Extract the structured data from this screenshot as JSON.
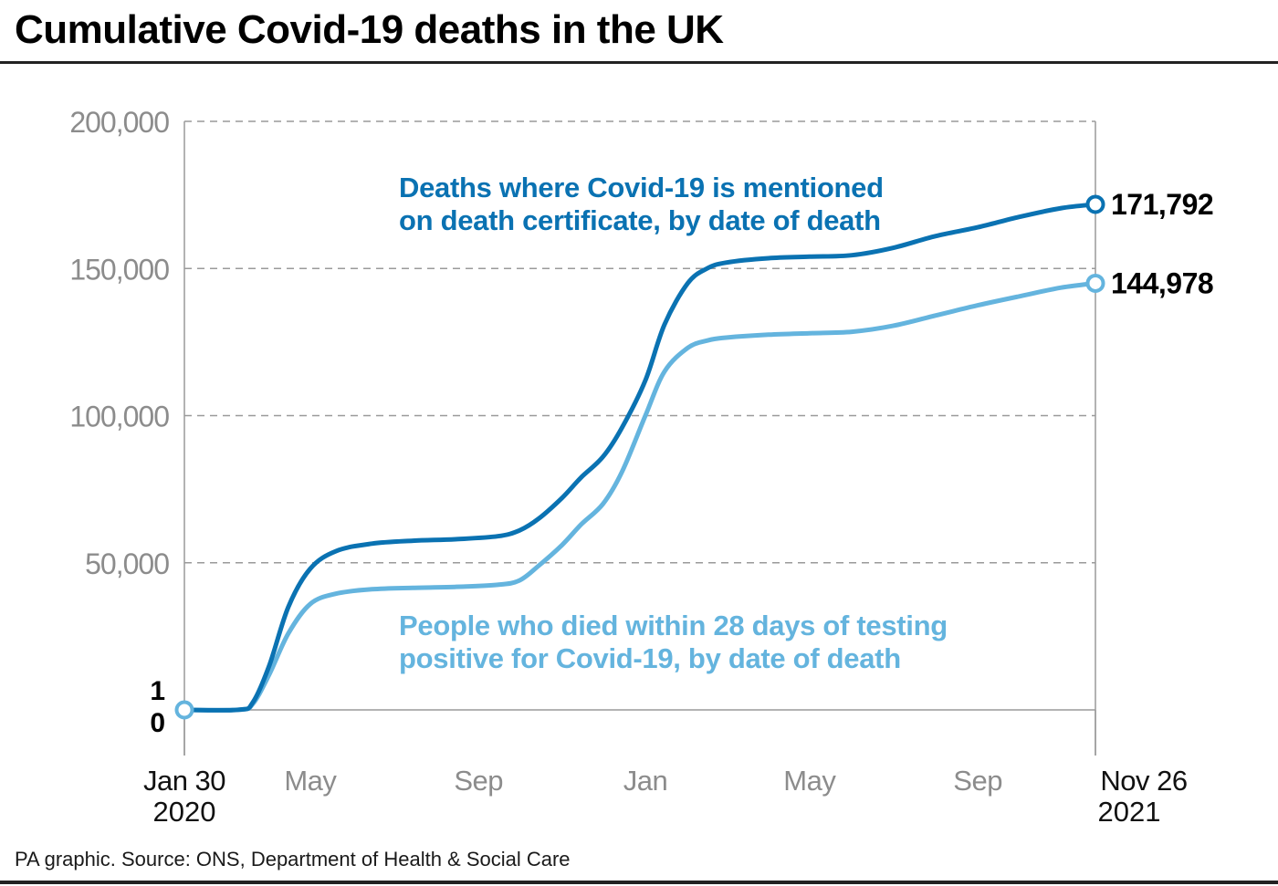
{
  "title": "Cumulative Covid-19 deaths in the UK",
  "source": "PA graphic. Source: ONS, Department of Health & Social Care",
  "colors": {
    "series_dark": "#0a72b2",
    "series_light": "#64b4de",
    "grid": "#9a9a9a",
    "axis_text": "#8c8c8c",
    "text": "#000000"
  },
  "chart_data": {
    "type": "line",
    "title": "Cumulative Covid-19 deaths in the UK",
    "x_start": "2020-01-30",
    "x_end": "2021-11-26",
    "ylim": [
      0,
      200000
    ],
    "yticks": [
      {
        "value": 0,
        "label": "0"
      },
      {
        "value": 50000,
        "label": "50,000"
      },
      {
        "value": 100000,
        "label": "100,000"
      },
      {
        "value": 150000,
        "label": "150,000"
      },
      {
        "value": 200000,
        "label": "200,000"
      }
    ],
    "ytick_extra_label": {
      "value": 1,
      "label": "1"
    },
    "xticks": [
      {
        "date": "2020-01-30",
        "label": "Jan 30",
        "sublabel": "2020",
        "emphasis": true
      },
      {
        "date": "2020-05-01",
        "label": "May",
        "sublabel": "",
        "emphasis": false
      },
      {
        "date": "2020-09-01",
        "label": "Sep",
        "sublabel": "",
        "emphasis": false
      },
      {
        "date": "2021-01-01",
        "label": "Jan",
        "sublabel": "",
        "emphasis": false
      },
      {
        "date": "2021-05-01",
        "label": "May",
        "sublabel": "",
        "emphasis": false
      },
      {
        "date": "2021-09-01",
        "label": "Sep",
        "sublabel": "",
        "emphasis": false
      },
      {
        "date": "2021-11-26",
        "label": "Nov 26",
        "sublabel": "2021",
        "emphasis": true
      }
    ],
    "grid": true,
    "series": [
      {
        "name": "Deaths where Covid-19 is mentioned on death certificate, by date of death",
        "label_lines": [
          "Deaths where Covid-19 is mentioned",
          "on death certificate, by date of death"
        ],
        "color": "#0a72b2",
        "end_label": "171,792",
        "points": [
          [
            "2020-01-30",
            0
          ],
          [
            "2020-03-10",
            50
          ],
          [
            "2020-03-20",
            2500
          ],
          [
            "2020-04-01",
            15000
          ],
          [
            "2020-04-15",
            35000
          ],
          [
            "2020-05-01",
            48000
          ],
          [
            "2020-05-20",
            54000
          ],
          [
            "2020-06-15",
            56500
          ],
          [
            "2020-07-15",
            57500
          ],
          [
            "2020-08-15",
            58000
          ],
          [
            "2020-09-15",
            59000
          ],
          [
            "2020-10-01",
            61000
          ],
          [
            "2020-10-15",
            65000
          ],
          [
            "2020-11-01",
            72000
          ],
          [
            "2020-11-15",
            79000
          ],
          [
            "2020-12-01",
            86000
          ],
          [
            "2020-12-15",
            96000
          ],
          [
            "2021-01-01",
            112000
          ],
          [
            "2021-01-15",
            131000
          ],
          [
            "2021-02-01",
            145000
          ],
          [
            "2021-02-15",
            150000
          ],
          [
            "2021-03-01",
            152000
          ],
          [
            "2021-04-01",
            153500
          ],
          [
            "2021-05-01",
            154000
          ],
          [
            "2021-06-01",
            154500
          ],
          [
            "2021-07-01",
            157000
          ],
          [
            "2021-08-01",
            161000
          ],
          [
            "2021-09-01",
            164000
          ],
          [
            "2021-10-01",
            167500
          ],
          [
            "2021-11-01",
            170500
          ],
          [
            "2021-11-26",
            171792
          ]
        ]
      },
      {
        "name": "People who died within 28 days of testing positive for Covid-19, by date of death",
        "label_lines": [
          "People who died within 28 days of testing",
          "positive for Covid-19, by date of death"
        ],
        "color": "#64b4de",
        "end_label": "144,978",
        "points": [
          [
            "2020-01-30",
            0
          ],
          [
            "2020-03-10",
            50
          ],
          [
            "2020-03-20",
            2000
          ],
          [
            "2020-04-01",
            12000
          ],
          [
            "2020-04-15",
            26000
          ],
          [
            "2020-05-01",
            36000
          ],
          [
            "2020-05-20",
            39500
          ],
          [
            "2020-06-15",
            41000
          ],
          [
            "2020-07-15",
            41500
          ],
          [
            "2020-08-15",
            41800
          ],
          [
            "2020-09-15",
            42500
          ],
          [
            "2020-10-01",
            44000
          ],
          [
            "2020-10-15",
            49000
          ],
          [
            "2020-11-01",
            56000
          ],
          [
            "2020-11-15",
            63000
          ],
          [
            "2020-12-01",
            70000
          ],
          [
            "2020-12-15",
            81000
          ],
          [
            "2021-01-01",
            100000
          ],
          [
            "2021-01-15",
            115000
          ],
          [
            "2021-02-01",
            123000
          ],
          [
            "2021-02-15",
            125500
          ],
          [
            "2021-03-01",
            126500
          ],
          [
            "2021-04-01",
            127500
          ],
          [
            "2021-05-01",
            128000
          ],
          [
            "2021-06-01",
            128500
          ],
          [
            "2021-07-01",
            130500
          ],
          [
            "2021-08-01",
            134000
          ],
          [
            "2021-09-01",
            137500
          ],
          [
            "2021-10-01",
            140500
          ],
          [
            "2021-11-01",
            143500
          ],
          [
            "2021-11-26",
            144978
          ]
        ]
      }
    ]
  }
}
